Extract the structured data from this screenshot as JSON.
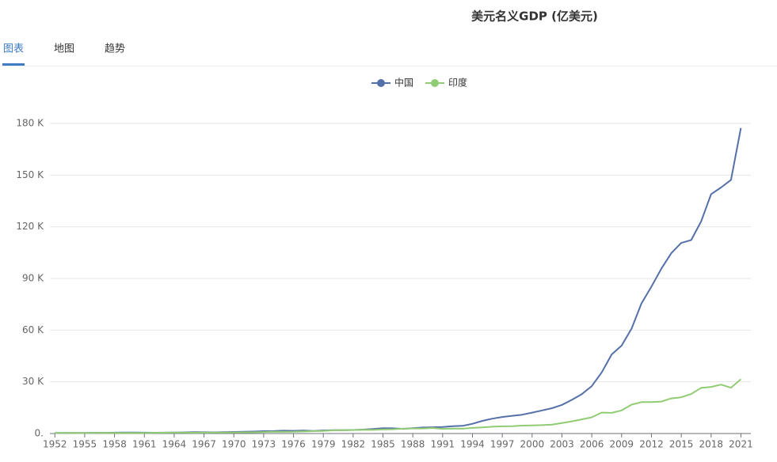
{
  "tabs": [
    "图表",
    "地图",
    "趋势"
  ],
  "chart_data": {
    "type": "line",
    "title": "美元名义GDP (亿美元)",
    "x": [
      1952,
      1953,
      1954,
      1955,
      1956,
      1957,
      1958,
      1959,
      1960,
      1961,
      1962,
      1963,
      1964,
      1965,
      1966,
      1967,
      1968,
      1969,
      1970,
      1971,
      1972,
      1973,
      1974,
      1975,
      1976,
      1977,
      1978,
      1979,
      1980,
      1981,
      1982,
      1983,
      1984,
      1985,
      1986,
      1987,
      1988,
      1989,
      1990,
      1991,
      1992,
      1993,
      1994,
      1995,
      1996,
      1997,
      1998,
      1999,
      2000,
      2001,
      2002,
      2003,
      2004,
      2005,
      2006,
      2007,
      2008,
      2009,
      2010,
      2011,
      2012,
      2013,
      2014,
      2015,
      2016,
      2017,
      2018,
      2019,
      2020,
      2021
    ],
    "series": [
      {
        "name": "中国",
        "color": "#5470a8",
        "values": [
          300,
          320,
          340,
          360,
          410,
          430,
          510,
          550,
          597,
          500,
          472,
          507,
          594,
          704,
          767,
          720,
          700,
          794,
          926,
          998,
          1137,
          1385,
          1442,
          1634,
          1539,
          1749,
          1495,
          1783,
          1911,
          1958,
          2050,
          2303,
          2599,
          3094,
          3008,
          2730,
          3123,
          3478,
          3609,
          3834,
          4269,
          4447,
          5643,
          7345,
          8637,
          9616,
          10290,
          10940,
          12113,
          13393,
          14705,
          16602,
          19553,
          22860,
          27521,
          35500,
          45940,
          51017,
          60872,
          75515,
          85322,
          95704,
          104757,
          110616,
          112333,
          123104,
          138948,
          142799,
          147227,
          177340
        ]
      },
      {
        "name": "印度",
        "color": "#91cc75",
        "values": [
          280,
          300,
          280,
          290,
          320,
          320,
          350,
          360,
          370,
          390,
          420,
          480,
          560,
          590,
          460,
          500,
          530,
          580,
          622,
          670,
          710,
          850,
          990,
          980,
          1020,
          1210,
          1370,
          1530,
          1864,
          1930,
          2010,
          2180,
          2120,
          2320,
          2480,
          2790,
          2960,
          2960,
          3209,
          2700,
          2880,
          2790,
          3270,
          3600,
          3930,
          4160,
          4210,
          4580,
          4684,
          4850,
          5150,
          6070,
          7090,
          8204,
          9400,
          12160,
          11989,
          13410,
          16756,
          18230,
          18280,
          18570,
          20390,
          21036,
          22950,
          26510,
          27026,
          28356,
          26600,
          31500
        ]
      }
    ],
    "xlim": [
      1951.5,
      2022
    ],
    "xticks": [
      1952,
      1955,
      1958,
      1961,
      1964,
      1967,
      1970,
      1973,
      1976,
      1979,
      1982,
      1985,
      1988,
      1991,
      1994,
      1997,
      2000,
      2003,
      2006,
      2009,
      2012,
      2015,
      2018,
      2021
    ],
    "ylim": [
      0,
      180000
    ],
    "yticks": [
      {
        "value": 0,
        "label": "0."
      },
      {
        "value": 30000,
        "label": "30 K"
      },
      {
        "value": 60000,
        "label": "60 K"
      },
      {
        "value": 90000,
        "label": "90 K"
      },
      {
        "value": 120000,
        "label": "120 K"
      },
      {
        "value": 150000,
        "label": "150 K"
      },
      {
        "value": 180000,
        "label": "180 K"
      }
    ],
    "grid": true
  }
}
